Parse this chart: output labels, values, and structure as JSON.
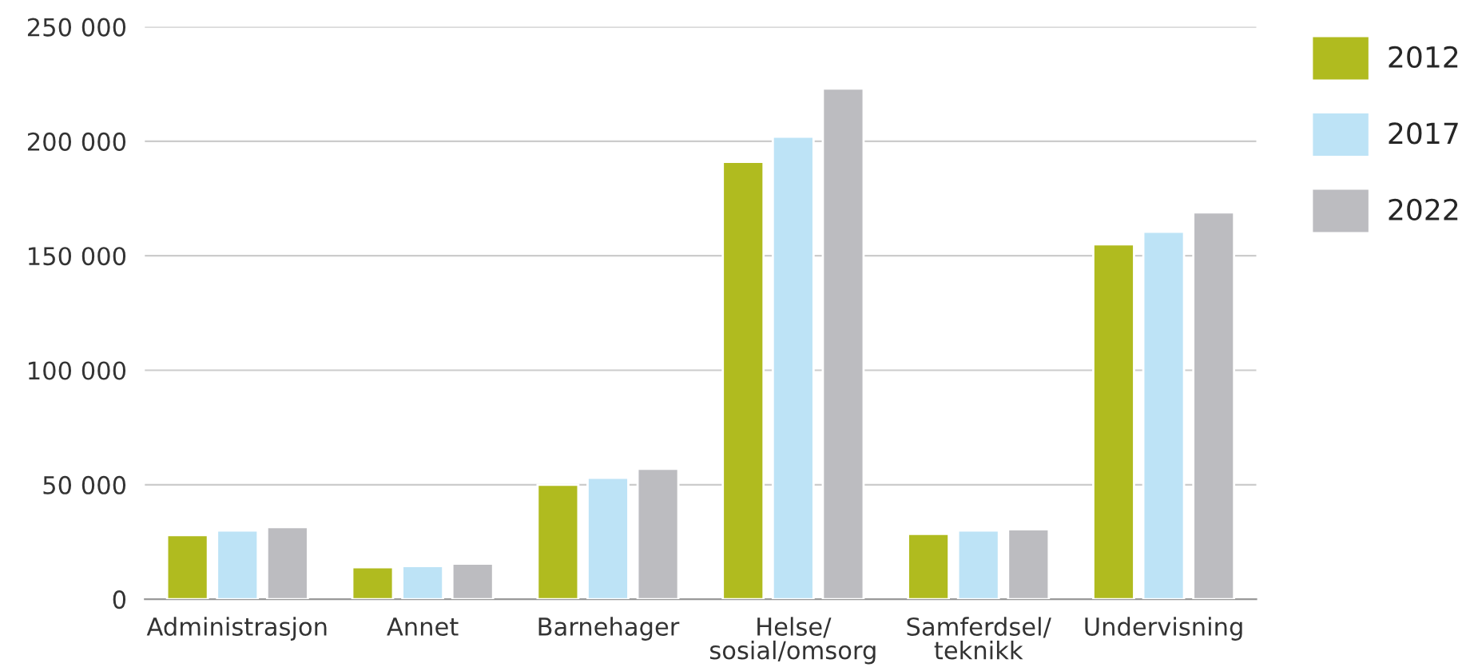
{
  "chart_data": {
    "type": "bar",
    "categories": [
      "Administrasjon",
      "Annet",
      "Barnehager",
      "Helse/\nsosial/omsorg",
      "Samferdsel/\nteknikk",
      "Undervisning"
    ],
    "series": [
      {
        "name": "2012",
        "color": "#b0bb1f",
        "values": [
          28000,
          14000,
          50000,
          191000,
          28500,
          155000
        ]
      },
      {
        "name": "2017",
        "color": "#bde3f6",
        "values": [
          30000,
          14500,
          53000,
          202000,
          30000,
          160500
        ]
      },
      {
        "name": "2022",
        "color": "#bcbcc0",
        "values": [
          31500,
          15500,
          57000,
          223000,
          30500,
          169000
        ]
      }
    ],
    "ylim": [
      0,
      250000
    ],
    "yticks": [
      0,
      {
        "value": 50000,
        "label": "50 000"
      },
      {
        "value": 100000,
        "label": "100 000"
      },
      {
        "value": 150000,
        "label": "150 000"
      },
      {
        "value": 200000,
        "label": "200 000"
      },
      {
        "value": 250000,
        "label": "250 000"
      }
    ],
    "grid": "y",
    "legend": "right"
  }
}
